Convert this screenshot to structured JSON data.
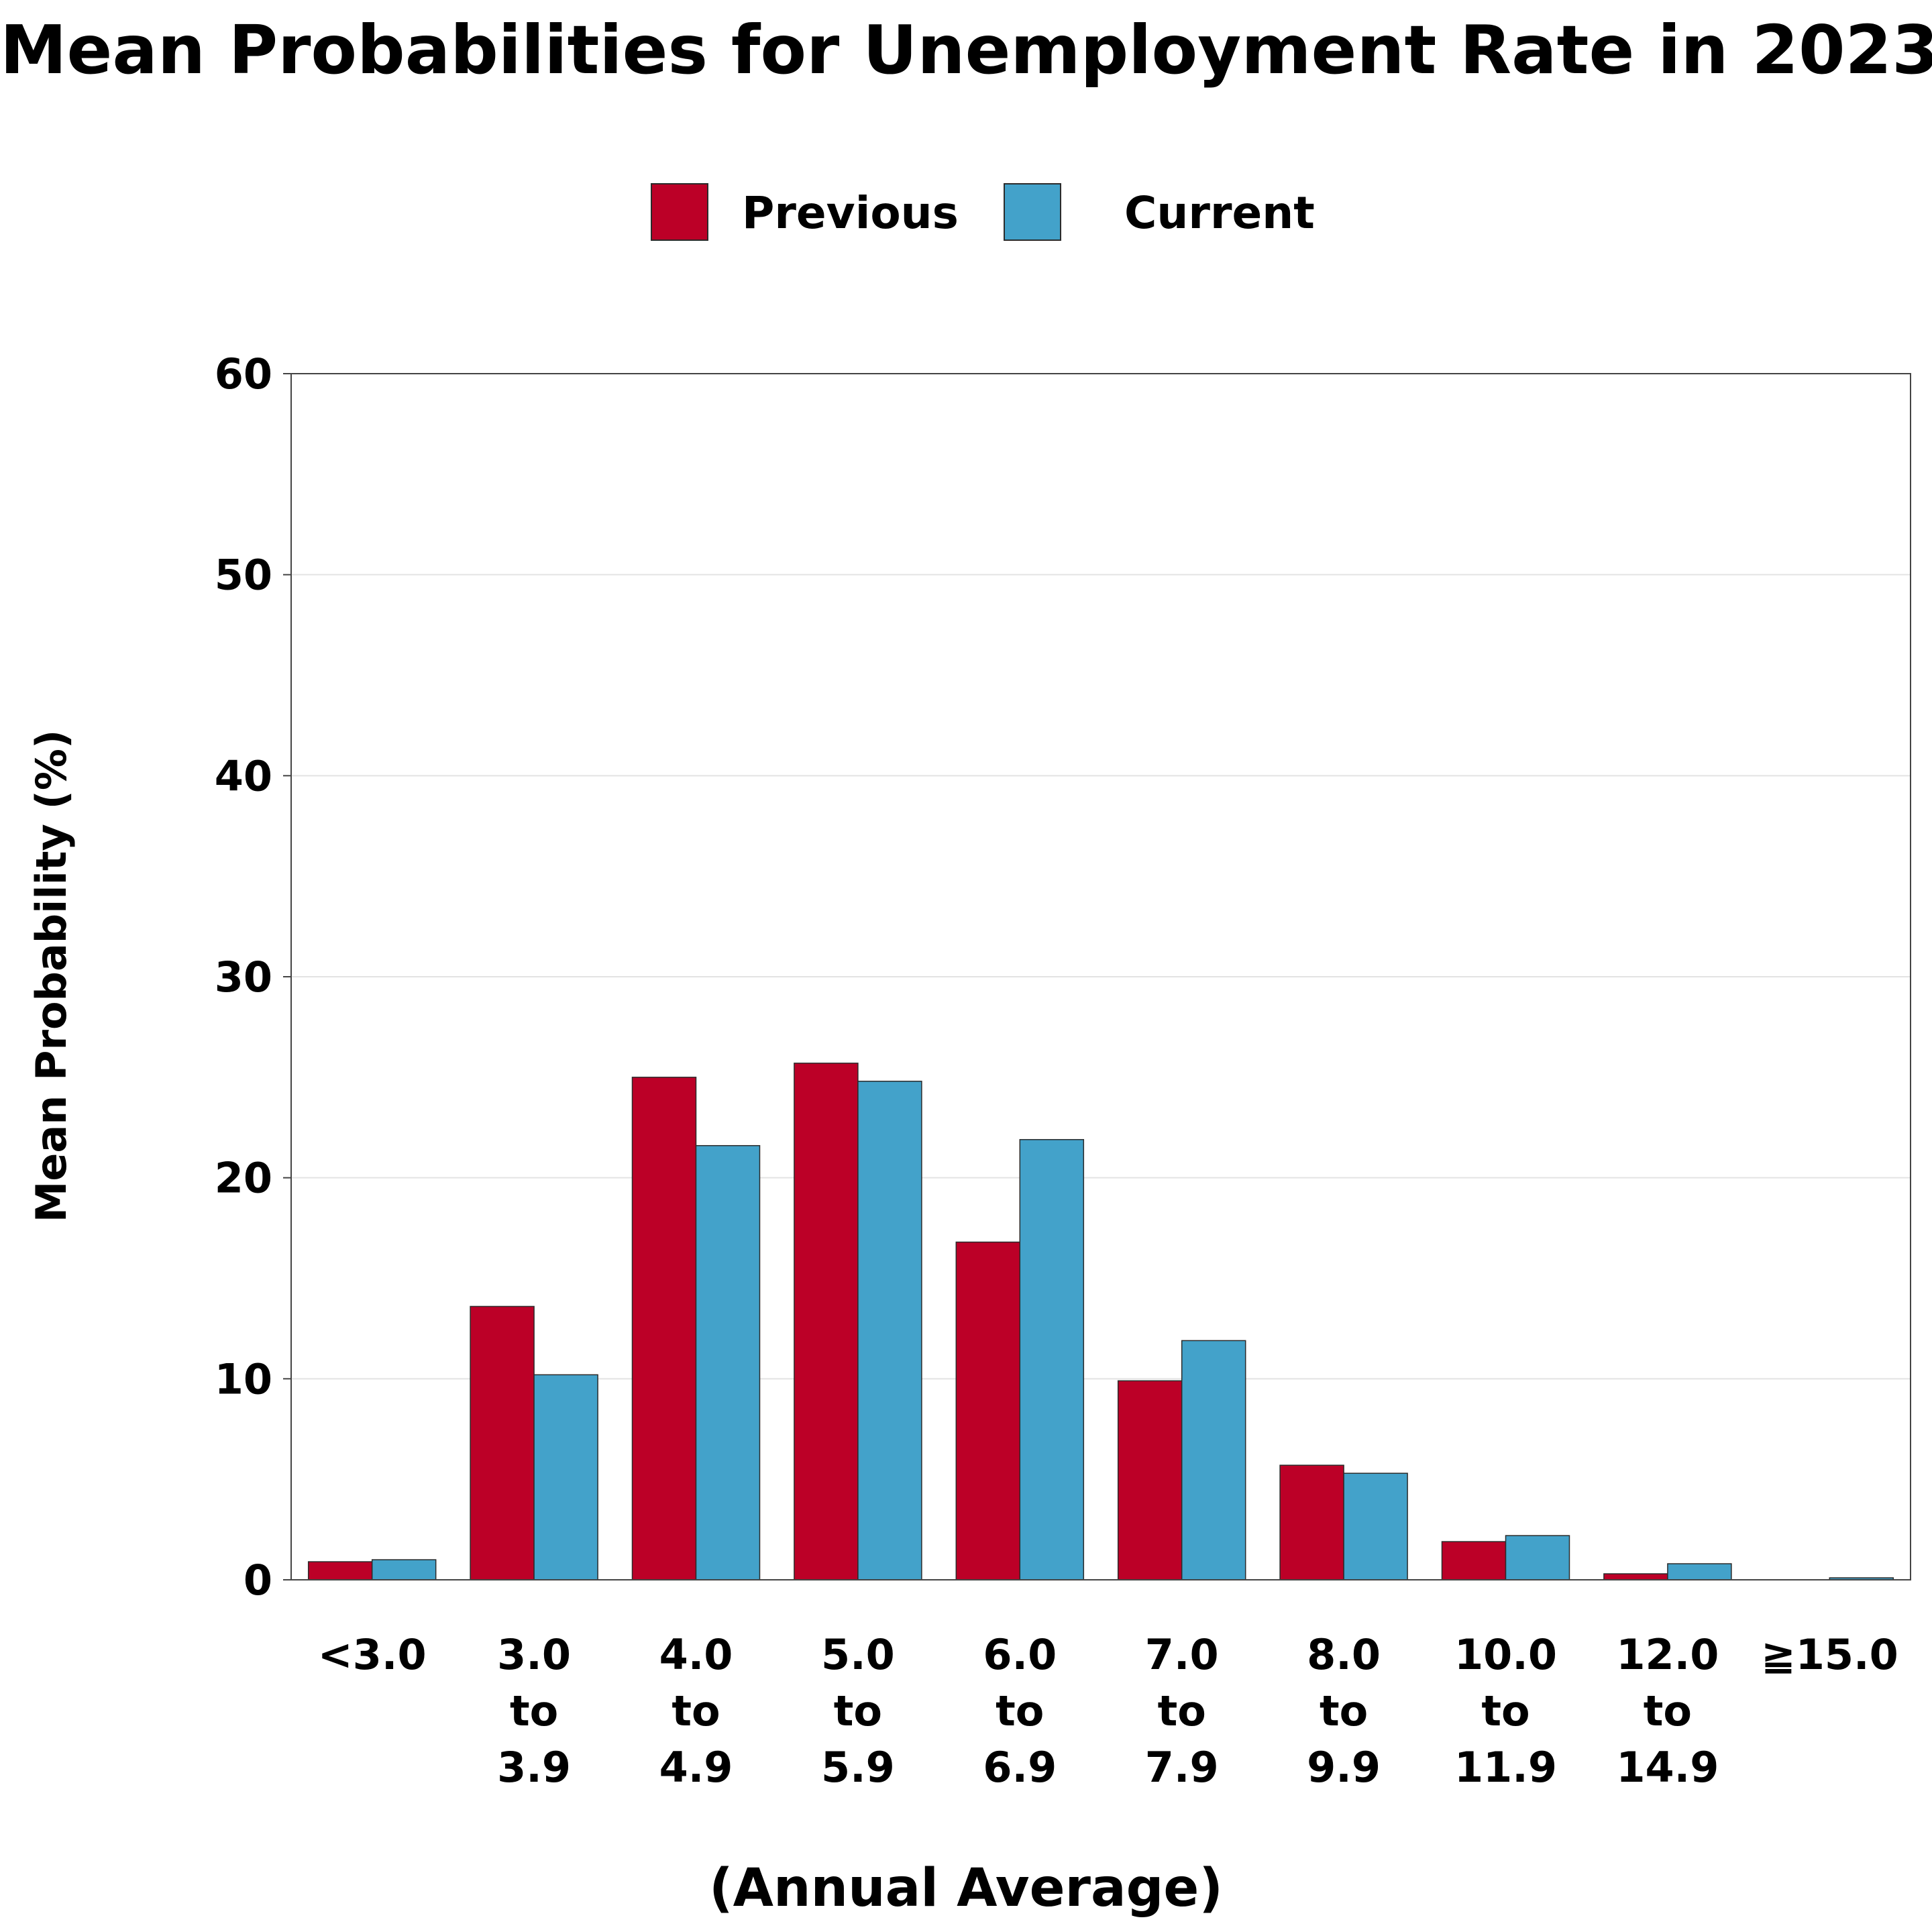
{
  "chart_data": {
    "type": "bar",
    "title": "Mean Probabilities for Unemployment Rate in 2023",
    "xlabel": "(Annual Average)",
    "ylabel": "Mean Probability (%)",
    "ylim": [
      0,
      60
    ],
    "yticks": [
      "0",
      "10",
      "20",
      "30",
      "40",
      "50",
      "60"
    ],
    "grid": true,
    "legend_position": "top-center",
    "categories": [
      [
        "<3.0"
      ],
      [
        "3.0",
        "to",
        "3.9"
      ],
      [
        "4.0",
        "to",
        "4.9"
      ],
      [
        "5.0",
        "to",
        "5.9"
      ],
      [
        "6.0",
        "to",
        "6.9"
      ],
      [
        "7.0",
        "to",
        "7.9"
      ],
      [
        "8.0",
        "to",
        "9.9"
      ],
      [
        "10.0",
        "to",
        "11.9"
      ],
      [
        "12.0",
        "to",
        "14.9"
      ],
      [
        "≧15.0"
      ]
    ],
    "series": [
      {
        "name": "Previous",
        "color": "#bc0027",
        "values": [
          0.9,
          13.6,
          25.0,
          25.7,
          16.8,
          9.9,
          5.7,
          1.9,
          0.3,
          0.0
        ]
      },
      {
        "name": "Current",
        "color": "#43a2ca",
        "values": [
          1.0,
          10.2,
          21.6,
          24.8,
          21.9,
          11.9,
          5.3,
          2.2,
          0.8,
          0.1
        ]
      }
    ]
  }
}
